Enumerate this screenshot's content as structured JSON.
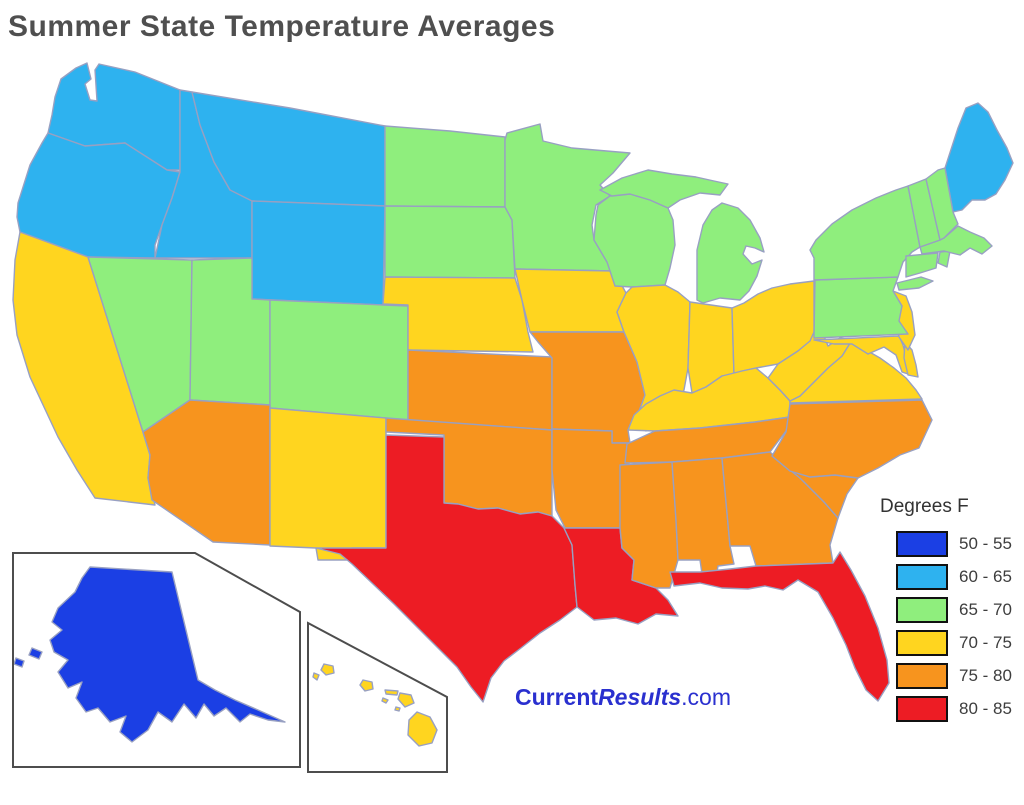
{
  "title": "Summer State Temperature Averages",
  "legend": {
    "heading": "Degrees F",
    "items": [
      {
        "label": "50 - 55",
        "band": "50-55",
        "color": "#1b3fe4"
      },
      {
        "label": "60 - 65",
        "band": "60-65",
        "color": "#2eb2ef"
      },
      {
        "label": "65 - 70",
        "band": "65-70",
        "color": "#8fee7d"
      },
      {
        "label": "70 - 75",
        "band": "70-75",
        "color": "#ffd51f"
      },
      {
        "label": "75 - 80",
        "band": "75-80",
        "color": "#f7941e"
      },
      {
        "label": "80 - 85",
        "band": "80-85",
        "color": "#ed1c24"
      }
    ]
  },
  "watermark": {
    "part1": "Current",
    "part2": "Results",
    "part3": ".com",
    "color": "#2a30cf"
  },
  "map": {
    "stroke_color": "#98a0c2",
    "inset_stroke_color": "#4d4d4d",
    "states": [
      {
        "id": "WA",
        "band": "60-65"
      },
      {
        "id": "OR",
        "band": "60-65"
      },
      {
        "id": "ID",
        "band": "60-65"
      },
      {
        "id": "MT",
        "band": "60-65"
      },
      {
        "id": "WY",
        "band": "60-65"
      },
      {
        "id": "ME",
        "band": "60-65"
      },
      {
        "id": "CA",
        "band": "70-75"
      },
      {
        "id": "NV",
        "band": "65-70"
      },
      {
        "id": "UT",
        "band": "65-70"
      },
      {
        "id": "CO",
        "band": "65-70"
      },
      {
        "id": "AZ",
        "band": "75-80"
      },
      {
        "id": "NM",
        "band": "70-75"
      },
      {
        "id": "ND",
        "band": "65-70"
      },
      {
        "id": "SD",
        "band": "65-70"
      },
      {
        "id": "NE",
        "band": "70-75"
      },
      {
        "id": "KS",
        "band": "75-80"
      },
      {
        "id": "OK",
        "band": "75-80"
      },
      {
        "id": "TX",
        "band": "80-85"
      },
      {
        "id": "MN",
        "band": "65-70"
      },
      {
        "id": "IA",
        "band": "70-75"
      },
      {
        "id": "MO",
        "band": "75-80"
      },
      {
        "id": "AR",
        "band": "75-80"
      },
      {
        "id": "LA",
        "band": "80-85"
      },
      {
        "id": "WI",
        "band": "65-70"
      },
      {
        "id": "MI",
        "band": "65-70"
      },
      {
        "id": "IL",
        "band": "70-75"
      },
      {
        "id": "IN",
        "band": "70-75"
      },
      {
        "id": "OH",
        "band": "70-75"
      },
      {
        "id": "KY",
        "band": "70-75"
      },
      {
        "id": "TN",
        "band": "75-80"
      },
      {
        "id": "MS",
        "band": "75-80"
      },
      {
        "id": "AL",
        "band": "75-80"
      },
      {
        "id": "GA",
        "band": "75-80"
      },
      {
        "id": "FL",
        "band": "80-85"
      },
      {
        "id": "SC",
        "band": "75-80"
      },
      {
        "id": "NC",
        "band": "75-80"
      },
      {
        "id": "VA",
        "band": "70-75"
      },
      {
        "id": "WV",
        "band": "70-75"
      },
      {
        "id": "MD",
        "band": "70-75"
      },
      {
        "id": "DE",
        "band": "70-75"
      },
      {
        "id": "NJ",
        "band": "70-75"
      },
      {
        "id": "PA",
        "band": "65-70"
      },
      {
        "id": "NY",
        "band": "65-70"
      },
      {
        "id": "CT",
        "band": "65-70"
      },
      {
        "id": "RI",
        "band": "65-70"
      },
      {
        "id": "MA",
        "band": "65-70"
      },
      {
        "id": "VT",
        "band": "65-70"
      },
      {
        "id": "NH",
        "band": "65-70"
      },
      {
        "id": "AK",
        "band": "50-55"
      },
      {
        "id": "HI",
        "band": "70-75"
      }
    ]
  }
}
